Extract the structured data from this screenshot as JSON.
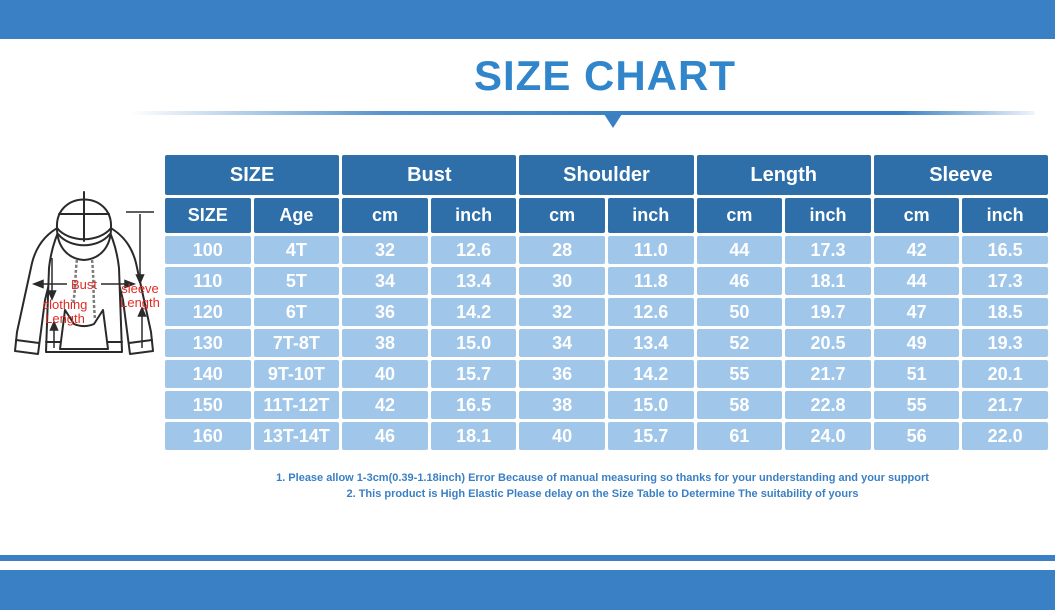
{
  "header": {
    "title": "SIZE CHART"
  },
  "chart_data": {
    "type": "table",
    "title": "SIZE CHART",
    "group_columns": [
      "SIZE",
      "Bust",
      "Shoulder",
      "Length",
      "Sleeve"
    ],
    "sub_columns": [
      "SIZE",
      "Age",
      "cm",
      "inch",
      "cm",
      "inch",
      "cm",
      "inch",
      "cm",
      "inch"
    ],
    "rows": [
      [
        "100",
        "4T",
        "32",
        "12.6",
        "28",
        "11.0",
        "44",
        "17.3",
        "42",
        "16.5"
      ],
      [
        "110",
        "5T",
        "34",
        "13.4",
        "30",
        "11.8",
        "46",
        "18.1",
        "44",
        "17.3"
      ],
      [
        "120",
        "6T",
        "36",
        "14.2",
        "32",
        "12.6",
        "50",
        "19.7",
        "47",
        "18.5"
      ],
      [
        "130",
        "7T-8T",
        "38",
        "15.0",
        "34",
        "13.4",
        "52",
        "20.5",
        "49",
        "19.3"
      ],
      [
        "140",
        "9T-10T",
        "40",
        "15.7",
        "36",
        "14.2",
        "55",
        "21.7",
        "51",
        "20.1"
      ],
      [
        "150",
        "11T-12T",
        "42",
        "16.5",
        "38",
        "15.0",
        "58",
        "22.8",
        "55",
        "21.7"
      ],
      [
        "160",
        "13T-14T",
        "46",
        "18.1",
        "40",
        "15.7",
        "61",
        "24.0",
        "56",
        "22.0"
      ]
    ]
  },
  "diagram": {
    "bust_label": "Bust",
    "clothing_length_lines": [
      "clothing",
      "Length"
    ],
    "sleeve_length_lines": [
      "sleeve",
      "Length"
    ]
  },
  "notes": {
    "line1": "1. Please allow 1-3cm(0.39-1.18inch) Error Because of manual measuring so thanks for your understanding and your support",
    "line2": "2. This product is High Elastic Please delay on the Size Table to Determine The suitability of yours"
  },
  "colors": {
    "bar_blue": "#3a80c4",
    "title_blue": "#3186cb",
    "header_cell_blue": "#2e6fa9",
    "data_cell_blue": "#a0c6ea",
    "note_blue": "#3a80c4",
    "annotation_red": "#e02b24",
    "sketch_black": "#2a2a2a"
  }
}
